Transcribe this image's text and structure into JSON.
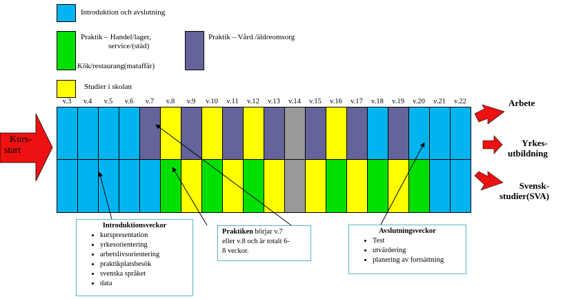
{
  "legend": [
    {
      "key": "intro",
      "label": "Introduktion och avslutning",
      "color": "#00b4f0"
    },
    {
      "key": "handel",
      "label": "Praktik – Handel/lager,",
      "label2": "service/(städ)",
      "label3": "Kök/restaurang(mataffär)",
      "color": "#00e000"
    },
    {
      "key": "vard",
      "label": "Praktik – Vård /äldreomsorg",
      "color": "#65649a"
    },
    {
      "key": "studier",
      "label": "Studier i skolan",
      "color": "#ffff00"
    }
  ],
  "weeks": [
    "v.3",
    "v.4",
    "v.5",
    "v.6",
    "v.7",
    "v.8",
    "v.9",
    "v.10",
    "v.11",
    "v.12",
    "v.13",
    "v.14",
    "v.15",
    "v.16",
    "v.17",
    "v.18",
    "v.19",
    "v.20",
    "v.21",
    "v.22"
  ],
  "rows": {
    "top": [
      "intro",
      "intro",
      "intro",
      "intro",
      "vard",
      "studier",
      "vard",
      "studier",
      "vard",
      "studier",
      "vard",
      "gray",
      "vard",
      "studier",
      "vard",
      "intro",
      "vard",
      "intro",
      "intro",
      "intro"
    ],
    "bottom": [
      "intro",
      "intro",
      "intro",
      "intro",
      "intro",
      "handel",
      "studier",
      "handel",
      "studier",
      "handel",
      "studier",
      "gray",
      "studier",
      "handel",
      "studier",
      "handel",
      "studier",
      "handel",
      "intro",
      "intro"
    ]
  },
  "cell_colors": {
    "intro": "#00b4f0",
    "vard": "#65649a",
    "studier": "#ffff00",
    "handel": "#00e000",
    "gray": "#999999"
  },
  "start": {
    "line1": "Kurs-",
    "line2": "start",
    "color": "#ee1111"
  },
  "outcomes": [
    {
      "key": "arbete",
      "line1": "Arbete",
      "line2": ""
    },
    {
      "key": "yrkes",
      "line1": "Yrkes-",
      "line2": "utbildning"
    },
    {
      "key": "svenska",
      "line1": "Svensk-",
      "line2": "studier(SVA)"
    }
  ],
  "boxes": {
    "intro": {
      "title": "Introduktionsveckor",
      "items": [
        "kurspresentation",
        "yrkesorientering",
        "arbetslivsorientering",
        "praktikplatsbesök",
        "svenska språket",
        "data"
      ]
    },
    "praktik": {
      "bold": "Praktiken",
      "rest1": " börjar v.7",
      "line2": "eller v.8 och är totalt 6-",
      "line3": "8 veckor."
    },
    "avslut": {
      "title": "Avslutningsveckor",
      "items": [
        "Test",
        "utvärdering",
        "planering av fortsättning"
      ]
    }
  }
}
